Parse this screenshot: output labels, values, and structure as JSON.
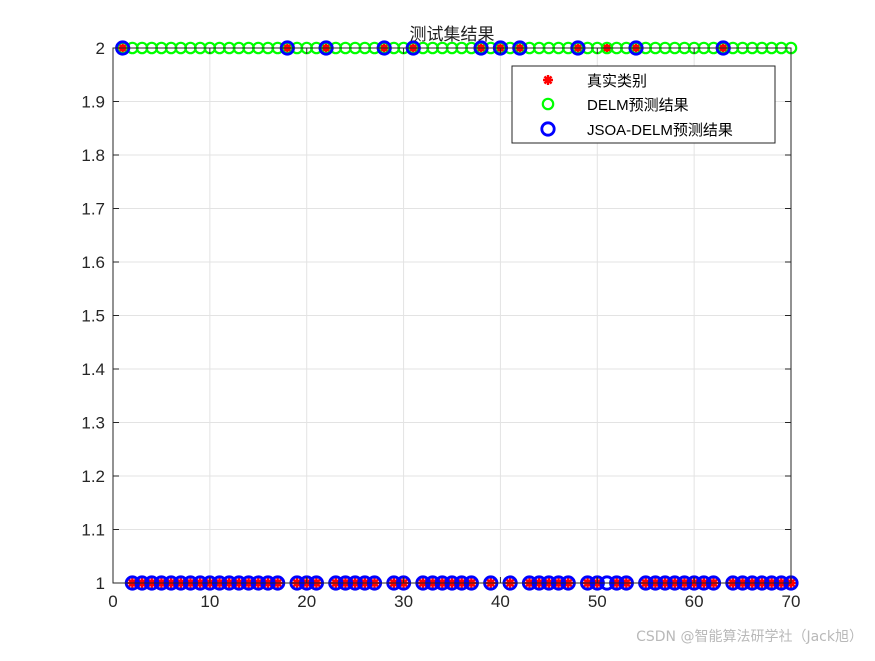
{
  "chart_data": {
    "type": "scatter",
    "title": "测试集结果",
    "xlabel": "",
    "ylabel": "",
    "xlim": [
      0,
      70
    ],
    "ylim": [
      1,
      2
    ],
    "xticks": [
      "0",
      "10",
      "20",
      "30",
      "40",
      "50",
      "60",
      "70"
    ],
    "yticks": [
      "1",
      "1.1",
      "1.2",
      "1.3",
      "1.4",
      "1.5",
      "1.6",
      "1.7",
      "1.8",
      "1.9",
      "2"
    ],
    "grid": true,
    "legend_position": "top-right",
    "x": "1..70",
    "series": [
      {
        "name": "真实类别",
        "marker": "asterisk",
        "color": "#ff0000",
        "values_at_2": [
          1,
          18,
          22,
          28,
          31,
          38,
          40,
          42,
          48,
          51,
          54,
          63
        ],
        "otherwise": 1
      },
      {
        "name": "DELM预测结果",
        "marker": "circle",
        "color": "#00ff00",
        "values_at_2": "all",
        "otherwise": 1
      },
      {
        "name": "JSOA-DELM预测结果",
        "marker": "circle",
        "color": "#0000ff",
        "values_at_2": [
          1,
          18,
          22,
          28,
          31,
          38,
          40,
          42,
          48,
          54,
          63
        ],
        "otherwise": 1
      }
    ]
  },
  "watermark": "CSDN @智能算法研学社（Jack旭）"
}
